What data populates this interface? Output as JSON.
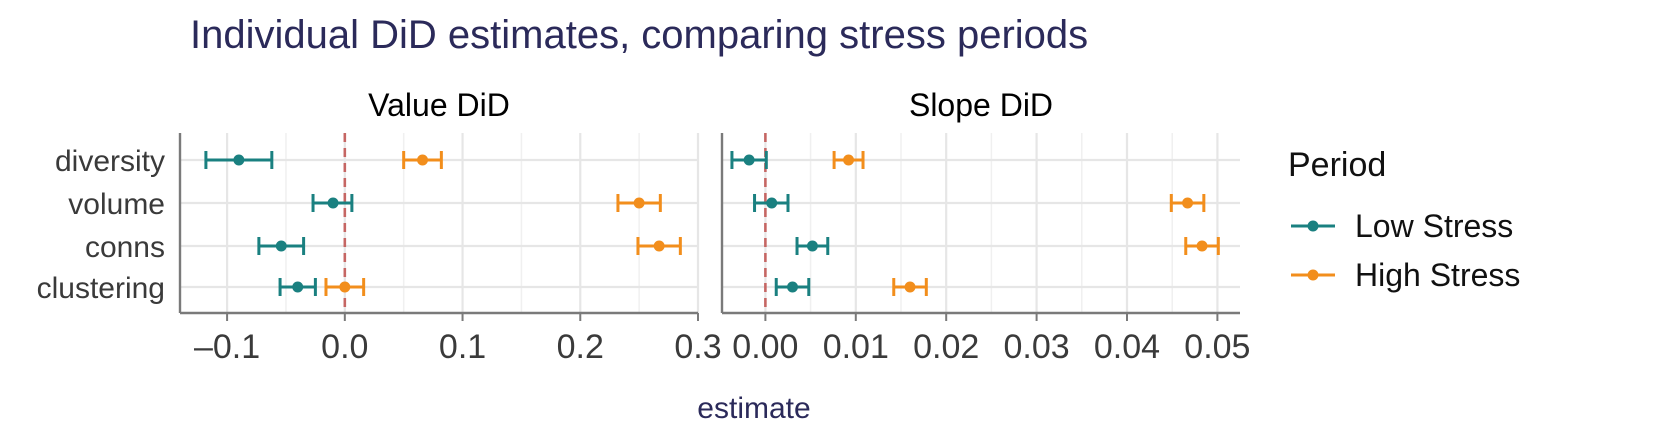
{
  "chart_data": {
    "type": "scatter",
    "title": "Individual DiD estimates, comparing stress periods",
    "xlabel": "estimate",
    "ylabel": "",
    "categories": [
      "diversity",
      "volume",
      "conns",
      "clustering"
    ],
    "legend": {
      "title": "Period",
      "placement": "right"
    },
    "reference_line": {
      "x": 0,
      "style": "dashed"
    },
    "grid": true,
    "colors": {
      "Low Stress": "#1a8080",
      "High Stress": "#f28e1c",
      "reference": "#c0504d"
    },
    "panels": [
      {
        "title": "Value DiD",
        "xlim": [
          -0.14,
          0.3
        ],
        "ticks": [
          -0.1,
          0.0,
          0.1,
          0.2,
          0.3
        ],
        "tick_labels": [
          "–0.1",
          "0.0",
          "0.1",
          "0.2",
          "0.3"
        ],
        "series": [
          {
            "name": "Low Stress",
            "values": [
              -0.09,
              -0.01,
              -0.054,
              -0.04
            ],
            "lower": [
              -0.118,
              -0.027,
              -0.073,
              -0.055
            ],
            "upper": [
              -0.062,
              0.006,
              -0.035,
              -0.025
            ]
          },
          {
            "name": "High Stress",
            "values": [
              0.066,
              0.25,
              0.267,
              0.0
            ],
            "lower": [
              0.05,
              0.232,
              0.249,
              -0.016
            ],
            "upper": [
              0.082,
              0.268,
              0.285,
              0.016
            ]
          }
        ]
      },
      {
        "title": "Slope DiD",
        "xlim": [
          -0.0048,
          0.0525
        ],
        "ticks": [
          0.0,
          0.01,
          0.02,
          0.03,
          0.04,
          0.05
        ],
        "tick_labels": [
          "0.00",
          "0.01",
          "0.02",
          "0.03",
          "0.04",
          "0.05"
        ],
        "series": [
          {
            "name": "Low Stress",
            "values": [
              -0.0018,
              0.0007,
              0.0052,
              0.003
            ],
            "lower": [
              -0.0037,
              -0.0012,
              0.0035,
              0.0012
            ],
            "upper": [
              0.0001,
              0.0025,
              0.0069,
              0.0048
            ]
          },
          {
            "name": "High Stress",
            "values": [
              0.0092,
              0.0467,
              0.0483,
              0.016
            ],
            "lower": [
              0.0076,
              0.0449,
              0.0465,
              0.0142
            ],
            "upper": [
              0.0108,
              0.0485,
              0.0501,
              0.0178
            ]
          }
        ]
      }
    ]
  }
}
